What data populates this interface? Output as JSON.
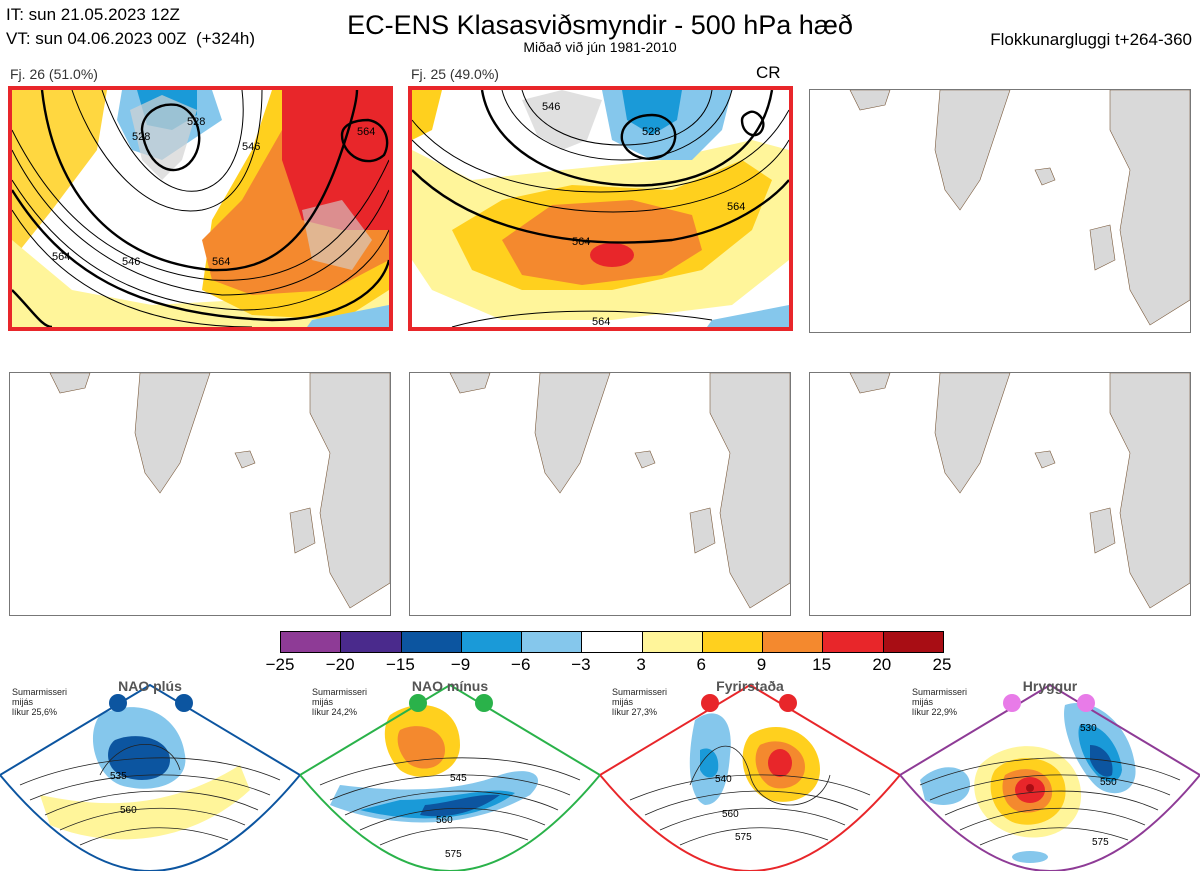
{
  "header": {
    "it_line": "IT: sun 21.05.2023 12Z",
    "vt_line": "VT: sun 04.06.2023 00Z  (+324h)",
    "title": "EC-ENS Klasasviðsmyndir - 500 hPa hæð",
    "subtitle": "Miðað við jún 1981-2010",
    "window": "Flokkunargluggi t+264-360"
  },
  "panels": [
    {
      "label": "Fj. 26 (51.0%)",
      "tag": "",
      "contours": [
        "528",
        "546",
        "564",
        "564",
        "564",
        "528",
        "546"
      ]
    },
    {
      "label": "Fj. 25 (49.0%)",
      "tag": "CR",
      "contours": [
        "528",
        "546",
        "564",
        "564",
        "564"
      ]
    }
  ],
  "colorbar": {
    "colors": [
      "#8e3b96",
      "#4a2a8c",
      "#0c55a0",
      "#1a9ad8",
      "#85c7ec",
      "#ffffff",
      "#fff59a",
      "#ffd01e",
      "#f4892e",
      "#e8262a",
      "#a80d14"
    ],
    "ticks": [
      "−25",
      "−20",
      "−15",
      "−9",
      "−6",
      "−3",
      "3",
      "6",
      "9",
      "15",
      "20",
      "25"
    ]
  },
  "regimes": [
    {
      "name": "NAO plús",
      "note": "Sumarmisseri\nmijás\nlíkur 25,6%",
      "color": "#0c55a0",
      "labels": [
        "535",
        "560"
      ]
    },
    {
      "name": "NAO mínus",
      "note": "Sumarmisseri\nmijás\nlíkur 24,2%",
      "color": "#2ab24a",
      "labels": [
        "545",
        "560",
        "575"
      ]
    },
    {
      "name": "Fyrirstaða",
      "note": "Sumarmisseri\nmijás\nlíkur 27,3%",
      "color": "#e8262a",
      "labels": [
        "540",
        "560",
        "575"
      ]
    },
    {
      "name": "Hryggur",
      "note": "Sumarmisseri\nmijás\nlíkur 22,9%",
      "color": "#e87be8",
      "labels": [
        "530",
        "550",
        "575"
      ]
    }
  ]
}
